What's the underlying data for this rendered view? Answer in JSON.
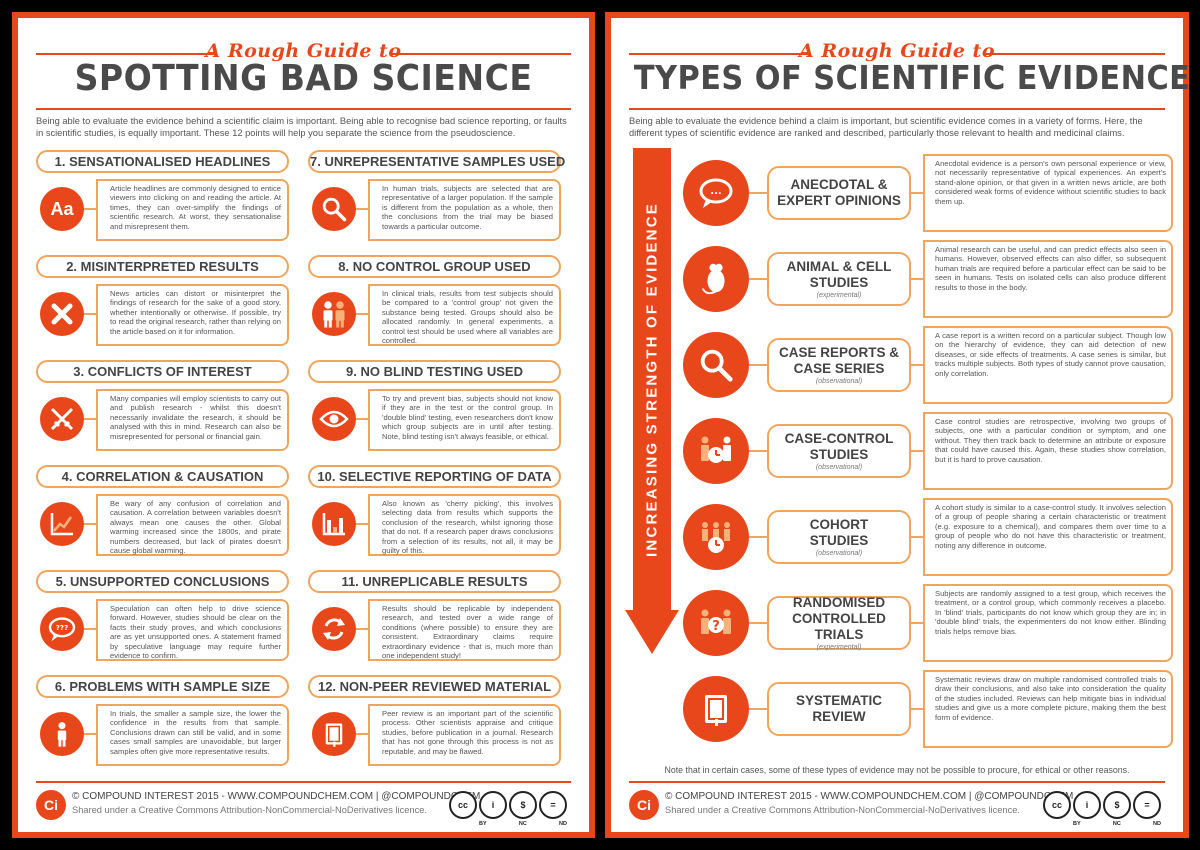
{
  "left": {
    "rough": "A Rough Guide to",
    "title": "SPOTTING BAD SCIENCE",
    "intro": "Being able to evaluate the evidence behind a scientific claim is important. Being able to recognise bad science reporting, or faults in scientific studies, is equally important. These 12 points will help you separate the science from the pseudoscience.",
    "items": [
      {
        "title": "1. SENSATIONALISED HEADLINES",
        "icon": "text-aa-icon",
        "text": "Article headlines are commonly designed to entice viewers into clicking on and reading the article. At times, they can over-simplify the findings of scientific research. At worst, they sensationalise and misrepresent them."
      },
      {
        "title": "7. UNREPRESENTATIVE SAMPLES USED",
        "icon": "magnifier-icon",
        "text": "In human trials, subjects are selected that are representative of a larger population. If the sample is different from the population as a whole, then the conclusions from the trial may be biased towards a particular outcome."
      },
      {
        "title": "2. MISINTERPRETED RESULTS",
        "icon": "cross-icon",
        "text": "News articles can distort or misinterpret the findings of research for the sake of a good story, whether intentionally or otherwise. If possible, try to read the original research, rather than relying on the article based on it for information."
      },
      {
        "title": "8. NO CONTROL GROUP USED",
        "icon": "people-icon",
        "text": "In clinical trials, results from test subjects should be compared to a 'control group' not given the substance being tested. Groups should also be allocated randomly. In general experiments, a control test should be used where all variables are controlled."
      },
      {
        "title": "3. CONFLICTS OF INTEREST",
        "icon": "crossed-swords-icon",
        "text": "Many companies will employ scientists to carry out and publish research - whilst this doesn't necessarily invalidate the research, it should be analysed with this in mind. Research can also be misrepresented for personal or financial gain."
      },
      {
        "title": "9. NO BLIND TESTING USED",
        "icon": "eye-icon",
        "text": "To try and prevent bias, subjects should not know if they are in the test or the control group. In 'double blind' testing, even researchers don't know which group subjects are in until after testing. Note, blind testing isn't always feasible, or ethical."
      },
      {
        "title": "4. CORRELATION & CAUSATION",
        "icon": "line-graph-icon",
        "text": "Be wary of any confusion of correlation and causation. A correlation between variables doesn't always mean one causes the other. Global warming increased since the 1800s, and pirate numbers decreased, but lack of pirates doesn't cause global warming."
      },
      {
        "title": "10. SELECTIVE REPORTING OF DATA",
        "icon": "bar-chart-icon",
        "text": "Also known as 'cherry picking', this involves selecting data from results which supports the conclusion of the research, whilst ignoring those that do not. If a research paper draws conclusions from a selection of its results, not all, it may be guilty of this."
      },
      {
        "title": "5. UNSUPPORTED CONCLUSIONS",
        "icon": "speech-bubble-icon",
        "text": "Speculation can often help to drive science forward. However, studies should be clear on the facts their study proves, and which conclusions are as yet unsupported ones. A statement framed by speculative language may require further evidence to confirm."
      },
      {
        "title": "11. UNREPLICABLE RESULTS",
        "icon": "refresh-icon",
        "text": "Results should be replicable by independent research, and tested over a wide range of conditions (where possible) to ensure they are consistent. Extraordinary claims require extraordinary evidence - that is, much more than one independent study!"
      },
      {
        "title": "6. PROBLEMS WITH SAMPLE SIZE",
        "icon": "person-icon",
        "text": "In trials, the smaller a sample size, the lower the confidence in the results from that sample. Conclusions drawn can still be valid, and in some cases small samples are unavoidable, but larger samples often give more representative results."
      },
      {
        "title": "12. NON-PEER REVIEWED MATERIAL",
        "icon": "book-icon",
        "text": "Peer review is an important part of the scientific process. Other scientists appraise and critique studies, before publication in a journal. Research that has not gone through this process is not as reputable, and may be flawed."
      }
    ]
  },
  "right": {
    "rough": "A Rough Guide to",
    "title": "TYPES OF SCIENTIFIC EVIDENCE",
    "intro": "Being able to evaluate the evidence behind a claim is important, but scientific evidence comes in a variety of forms. Here, the different types of scientific evidence are ranked and described, particularly those relevant to health and medicinal claims.",
    "arrow_label": "INCREASING STRENGTH OF EVIDENCE",
    "rows": [
      {
        "title": "ANECDOTAL &\nEXPERT OPINIONS",
        "sub": "",
        "icon": "speech-bubble-icon",
        "text": "Anecdotal evidence is a person's own personal experience or view, not necessarily representative of typical experiences. An expert's stand-alone opinion, or that given in a written news article, are both considered weak forms of evidence without scientific studies to back them up."
      },
      {
        "title": "ANIMAL & CELL\nSTUDIES",
        "sub": "(experimental)",
        "icon": "rat-icon",
        "text": "Animal research can be useful, and can predict effects also seen in humans. However, observed effects can also differ, so subsequent human trials are required before a particular effect can be said to be seen in humans. Tests on isolated cells can also produce different results to those in the body."
      },
      {
        "title": "CASE REPORTS &\nCASE SERIES",
        "sub": "(observational)",
        "icon": "magnifier-icon",
        "text": "A case report is a written record on a particular subject. Though low on the hierarchy of evidence, they can aid detection of new diseases, or side effects of treatments. A case series is similar, but tracks multiple subjects. Both types of study cannot prove causation, only correlation."
      },
      {
        "title": "CASE-CONTROL\nSTUDIES",
        "sub": "(observational)",
        "icon": "people-clock-icon",
        "text": "Case control studies are retrospective, involving two groups of subjects, one with a particular condition or symptom, and one without. They then track back to determine an attribute or exposure that could have caused this. Again, these studies show correlation, but it is hard to prove causation."
      },
      {
        "title": "COHORT\nSTUDIES",
        "sub": "(observational)",
        "icon": "group-clock-icon",
        "text": "A cohort study is similar to a case-control study. It involves selection of a group of people sharing a certain characteristic or treatment (e.g. exposure to a chemical), and compares them over time to a group of people who do not have this characteristic or treatment, noting any difference in outcome."
      },
      {
        "title": "RANDOMISED\nCONTROLLED TRIALS",
        "sub": "(experimental)",
        "icon": "people-question-icon",
        "text": "Subjects are randomly assigned to a test group, which receives the treatment, or a control group, which commonly receives a placebo. In 'blind' trials, participants do not know which group they are in; in 'double blind' trials, the experimenters do not know either. Blinding trials helps remove bias."
      },
      {
        "title": "SYSTEMATIC\nREVIEW",
        "sub": "",
        "icon": "book-icon",
        "text": "Systematic reviews draw on multiple randomised controlled trials to draw their conclusions, and also take into consideration the quality of the studies included. Reviews can help mitigate bias in individual studies and give us a more complete picture, making them the best form of evidence."
      }
    ],
    "note": "Note that in certain cases, some of these types of evidence may not be possible to procure, for ethical or other reasons."
  },
  "footer": {
    "logo": "Ci",
    "line1": "© COMPOUND INTEREST 2015 - WWW.COMPOUNDCHEM.COM | @COMPOUNDCHEM",
    "line2": "Shared under a Creative Commons Attribution-NonCommercial-NoDerivatives licence.",
    "badges": [
      "cc",
      "i",
      "$",
      "="
    ],
    "badge_labels": [
      "BY",
      "NC",
      "ND"
    ]
  },
  "colors": {
    "accent": "#e8471c",
    "accent_light": "#f0a55c",
    "text": "#555555",
    "title": "#444444"
  }
}
